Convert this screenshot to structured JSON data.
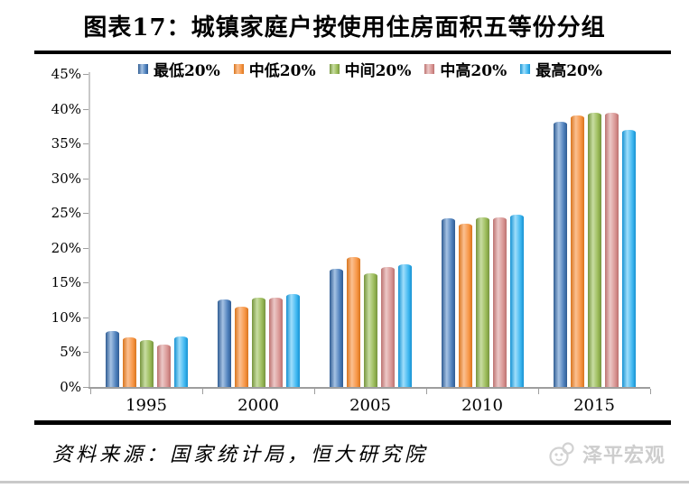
{
  "title": "图表17：城镇家庭户按使用住房面积五等份分组",
  "source": "资料来源：国家统计局，恒大研究院",
  "brand": {
    "name": "泽平宏观",
    "icon": "panda-mascot-icon",
    "color": "#cdcdcd"
  },
  "chart_data": {
    "type": "bar",
    "title": "城镇家庭户按使用住房面积五等份分组",
    "categories": [
      "1995",
      "2000",
      "2005",
      "2010",
      "2015"
    ],
    "series": [
      {
        "name": "最低20%",
        "color": "#4f81bd",
        "color_light": "#a5c2e3",
        "color_dark": "#2f5c93",
        "values": [
          8.1,
          12.6,
          17.0,
          24.3,
          38.1
        ]
      },
      {
        "name": "中低20%",
        "color": "#f79646",
        "color_light": "#fbc091",
        "color_dark": "#d9751e",
        "values": [
          7.1,
          11.6,
          18.7,
          23.5,
          39.1
        ]
      },
      {
        "name": "中间20%",
        "color": "#9bbb59",
        "color_light": "#c8dda2",
        "color_dark": "#76953e",
        "values": [
          6.7,
          12.8,
          16.4,
          24.4,
          39.4
        ]
      },
      {
        "name": "中高20%",
        "color": "#d99694",
        "color_light": "#ecc8c7",
        "color_dark": "#bc7270",
        "values": [
          6.1,
          12.8,
          17.3,
          24.4,
          39.4
        ]
      },
      {
        "name": "最高20%",
        "color": "#41b8f1",
        "color_light": "#9fdefb",
        "color_dark": "#1792d2",
        "values": [
          7.2,
          13.3,
          17.6,
          24.8,
          37.0
        ]
      }
    ],
    "xlabel": "",
    "ylabel": "",
    "ylim": [
      0,
      45
    ],
    "ytick_step": 5,
    "ytick_suffix": "%",
    "grid": false,
    "legend_position": "top"
  }
}
